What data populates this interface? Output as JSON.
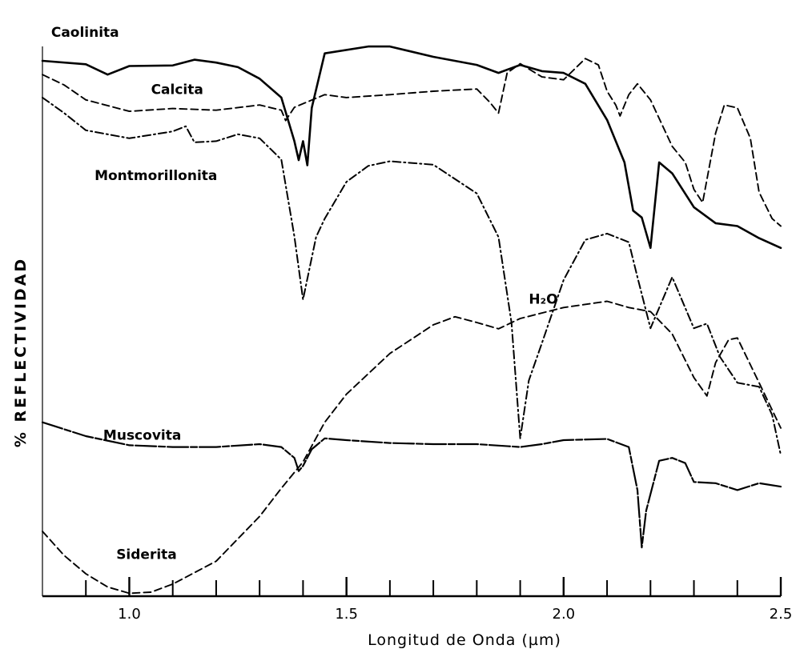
{
  "chart_data": {
    "type": "line",
    "title": "",
    "xlabel": "Longitud de Onda (µm)",
    "ylabel": "% REFLECTIVIDAD",
    "xlim": [
      0.8,
      2.5
    ],
    "ylim": [
      0,
      100
    ],
    "x_ticks": [
      1.0,
      1.5,
      2.0,
      2.5
    ],
    "x_tick_labels": [
      "1.0",
      "1.5",
      "2.0",
      "2.5"
    ],
    "x_minor_ticks": [
      0.9,
      1.0,
      1.1,
      1.2,
      1.3,
      1.4,
      1.5,
      1.6,
      1.7,
      1.8,
      1.9,
      2.0,
      2.1,
      2.2,
      2.3,
      2.4
    ],
    "annotations": [
      {
        "text": "H₂O",
        "x": 1.92,
        "y": 51
      }
    ],
    "series": [
      {
        "name": "Caolinita",
        "style": "solid",
        "points": [
          [
            0.8,
            93.3
          ],
          [
            0.9,
            92.7
          ],
          [
            0.95,
            90.9
          ],
          [
            1.0,
            92.4
          ],
          [
            1.1,
            92.5
          ],
          [
            1.15,
            93.5
          ],
          [
            1.2,
            93.0
          ],
          [
            1.25,
            92.2
          ],
          [
            1.3,
            90.2
          ],
          [
            1.35,
            86.9
          ],
          [
            1.38,
            79.3
          ],
          [
            1.39,
            76.0
          ],
          [
            1.4,
            79.3
          ],
          [
            1.41,
            75.1
          ],
          [
            1.42,
            85.1
          ],
          [
            1.45,
            94.6
          ],
          [
            1.55,
            95.8
          ],
          [
            1.6,
            95.8
          ],
          [
            1.7,
            94.0
          ],
          [
            1.8,
            92.6
          ],
          [
            1.85,
            91.2
          ],
          [
            1.9,
            92.6
          ],
          [
            1.95,
            91.5
          ],
          [
            2.0,
            91.2
          ],
          [
            2.05,
            89.3
          ],
          [
            2.1,
            83.0
          ],
          [
            2.14,
            75.6
          ],
          [
            2.16,
            67.2
          ],
          [
            2.18,
            66.0
          ],
          [
            2.2,
            60.7
          ],
          [
            2.22,
            75.6
          ],
          [
            2.25,
            73.7
          ],
          [
            2.3,
            67.8
          ],
          [
            2.35,
            65.0
          ],
          [
            2.4,
            64.5
          ],
          [
            2.45,
            62.4
          ],
          [
            2.5,
            60.7
          ]
        ]
      },
      {
        "name": "Calcita",
        "style": "dashed",
        "points": [
          [
            0.8,
            90.9
          ],
          [
            0.85,
            89.1
          ],
          [
            0.9,
            86.5
          ],
          [
            1.0,
            84.5
          ],
          [
            1.1,
            85.0
          ],
          [
            1.2,
            84.7
          ],
          [
            1.3,
            85.6
          ],
          [
            1.35,
            84.7
          ],
          [
            1.36,
            82.9
          ],
          [
            1.38,
            85.2
          ],
          [
            1.45,
            87.4
          ],
          [
            1.5,
            86.9
          ],
          [
            1.6,
            87.4
          ],
          [
            1.7,
            88.0
          ],
          [
            1.8,
            88.4
          ],
          [
            1.83,
            86.1
          ],
          [
            1.85,
            84.2
          ],
          [
            1.87,
            91.2
          ],
          [
            1.9,
            92.8
          ],
          [
            1.95,
            90.5
          ],
          [
            2.0,
            90.0
          ],
          [
            2.05,
            93.7
          ],
          [
            2.08,
            92.6
          ],
          [
            2.1,
            88.0
          ],
          [
            2.12,
            85.6
          ],
          [
            2.13,
            83.7
          ],
          [
            2.15,
            87.4
          ],
          [
            2.17,
            89.3
          ],
          [
            2.2,
            86.5
          ],
          [
            2.25,
            78.4
          ],
          [
            2.28,
            75.6
          ],
          [
            2.3,
            70.9
          ],
          [
            2.32,
            68.6
          ],
          [
            2.35,
            80.7
          ],
          [
            2.37,
            85.6
          ],
          [
            2.4,
            85.1
          ],
          [
            2.43,
            79.8
          ],
          [
            2.45,
            70.4
          ],
          [
            2.48,
            65.8
          ],
          [
            2.5,
            64.5
          ]
        ]
      },
      {
        "name": "Montmorillonita",
        "style": "dashdot",
        "points": [
          [
            0.8,
            86.9
          ],
          [
            0.85,
            84.2
          ],
          [
            0.9,
            81.2
          ],
          [
            1.0,
            79.8
          ],
          [
            1.1,
            81.0
          ],
          [
            1.13,
            81.9
          ],
          [
            1.15,
            79.1
          ],
          [
            1.2,
            79.3
          ],
          [
            1.25,
            80.5
          ],
          [
            1.3,
            79.8
          ],
          [
            1.35,
            76.1
          ],
          [
            1.38,
            62.7
          ],
          [
            1.4,
            51.7
          ],
          [
            1.43,
            62.6
          ],
          [
            1.45,
            65.8
          ],
          [
            1.5,
            72.2
          ],
          [
            1.55,
            75.0
          ],
          [
            1.6,
            75.8
          ],
          [
            1.7,
            75.2
          ],
          [
            1.8,
            70.2
          ],
          [
            1.85,
            62.6
          ],
          [
            1.88,
            47.7
          ],
          [
            1.9,
            27.5
          ],
          [
            1.92,
            37.6
          ],
          [
            1.95,
            44.1
          ],
          [
            2.0,
            55.1
          ],
          [
            2.05,
            62.1
          ],
          [
            2.1,
            63.2
          ],
          [
            2.15,
            61.7
          ],
          [
            2.17,
            55.6
          ],
          [
            2.2,
            46.7
          ],
          [
            2.25,
            55.6
          ],
          [
            2.3,
            46.7
          ],
          [
            2.33,
            47.5
          ],
          [
            2.36,
            41.7
          ],
          [
            2.4,
            37.2
          ],
          [
            2.45,
            36.5
          ],
          [
            2.48,
            31.6
          ],
          [
            2.5,
            24.6
          ]
        ]
      },
      {
        "name": "Muscovita",
        "style": "solid-with-gaps",
        "points": [
          [
            0.8,
            30.3
          ],
          [
            0.9,
            27.9
          ],
          [
            1.0,
            26.3
          ],
          [
            1.1,
            26.0
          ],
          [
            1.2,
            26.0
          ],
          [
            1.3,
            26.5
          ],
          [
            1.35,
            26.0
          ],
          [
            1.38,
            24.1
          ],
          [
            1.39,
            21.8
          ],
          [
            1.4,
            22.7
          ],
          [
            1.42,
            25.6
          ],
          [
            1.45,
            27.5
          ],
          [
            1.5,
            27.2
          ],
          [
            1.6,
            26.7
          ],
          [
            1.7,
            26.5
          ],
          [
            1.8,
            26.5
          ],
          [
            1.9,
            26.0
          ],
          [
            1.95,
            26.5
          ],
          [
            2.0,
            27.2
          ],
          [
            2.1,
            27.4
          ],
          [
            2.15,
            26.0
          ],
          [
            2.17,
            18.5
          ],
          [
            2.18,
            8.5
          ],
          [
            2.19,
            14.9
          ],
          [
            2.22,
            23.6
          ],
          [
            2.25,
            24.1
          ],
          [
            2.28,
            23.2
          ],
          [
            2.3,
            19.9
          ],
          [
            2.35,
            19.7
          ],
          [
            2.4,
            18.5
          ],
          [
            2.45,
            19.7
          ],
          [
            2.5,
            19.1
          ]
        ]
      },
      {
        "name": "Siderita",
        "style": "dashed",
        "points": [
          [
            0.8,
            11.3
          ],
          [
            0.85,
            7.1
          ],
          [
            0.9,
            3.9
          ],
          [
            0.95,
            1.6
          ],
          [
            1.0,
            0.5
          ],
          [
            1.05,
            0.7
          ],
          [
            1.1,
            2.1
          ],
          [
            1.2,
            6.1
          ],
          [
            1.3,
            13.9
          ],
          [
            1.35,
            18.8
          ],
          [
            1.4,
            23.4
          ],
          [
            1.45,
            30.3
          ],
          [
            1.5,
            35.2
          ],
          [
            1.6,
            42.3
          ],
          [
            1.7,
            47.3
          ],
          [
            1.75,
            48.7
          ],
          [
            1.8,
            47.7
          ],
          [
            1.85,
            46.6
          ],
          [
            1.9,
            48.4
          ],
          [
            2.0,
            50.3
          ],
          [
            2.1,
            51.4
          ],
          [
            2.15,
            50.3
          ],
          [
            2.2,
            49.6
          ],
          [
            2.25,
            45.7
          ],
          [
            2.3,
            38.1
          ],
          [
            2.33,
            34.9
          ],
          [
            2.35,
            40.7
          ],
          [
            2.38,
            44.7
          ],
          [
            2.4,
            45.0
          ],
          [
            2.45,
            37.2
          ],
          [
            2.5,
            29.3
          ]
        ]
      }
    ],
    "series_labels": [
      {
        "series": "Caolinita",
        "x": 0.82,
        "y": 97.5
      },
      {
        "series": "Calcita",
        "x": 1.05,
        "y": 87.5
      },
      {
        "series": "Montmorillonita",
        "x": 0.92,
        "y": 72.5
      },
      {
        "series": "Muscovita",
        "x": 0.94,
        "y": 27.3
      },
      {
        "series": "Siderita",
        "x": 0.97,
        "y": 6.5
      }
    ]
  }
}
